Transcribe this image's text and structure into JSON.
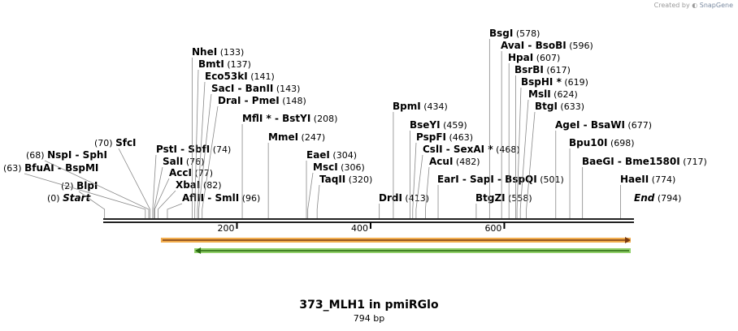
{
  "credit": {
    "prefix": "Created by",
    "brand": "SnapGene"
  },
  "title": "373_MLH1 in pmiRGlo",
  "size_label": "794 bp",
  "sequence_length": 794,
  "ruler_ticks": [
    200,
    400,
    600
  ],
  "colors": {
    "backbone": "#222222",
    "feature_fwd": "#f0a030",
    "feature_fwd_arrow": "#7a3a10",
    "feature_rev": "#7ec850",
    "feature_rev_arrow": "#2a6a10"
  },
  "features": [
    {
      "direction": "forward",
      "start": 113,
      "end": 794
    },
    {
      "direction": "reverse",
      "start": 163,
      "end": 794
    }
  ],
  "sites": [
    {
      "names": [
        "Start"
      ],
      "pos_label": "(0)",
      "site": 0,
      "italic": true
    },
    {
      "names": [
        "BlpI"
      ],
      "pos_label": "(2)",
      "site": 2
    },
    {
      "names": [
        "BfuAI",
        "BspMI"
      ],
      "pos_label": "(63)",
      "site": 63
    },
    {
      "names": [
        "NspI",
        "SphI"
      ],
      "pos_label": "(68)",
      "site": 68
    },
    {
      "names": [
        "SfcI"
      ],
      "pos_label": "(70)",
      "site": 70
    },
    {
      "names": [
        "PstI",
        "SbfI"
      ],
      "pos_label": "(74)",
      "site": 74
    },
    {
      "names": [
        "SalI"
      ],
      "pos_label": "(76)",
      "site": 76
    },
    {
      "names": [
        "AccI"
      ],
      "pos_label": "(77)",
      "site": 77
    },
    {
      "names": [
        "XbaI"
      ],
      "pos_label": "(82)",
      "site": 82
    },
    {
      "names": [
        "AflII",
        "SmlI"
      ],
      "pos_label": "(96)",
      "site": 96
    },
    {
      "names": [
        "NheI"
      ],
      "pos_label": "(133)",
      "site": 133
    },
    {
      "names": [
        "BmtI"
      ],
      "pos_label": "(137)",
      "site": 137
    },
    {
      "names": [
        "Eco53kI"
      ],
      "pos_label": "(141)",
      "site": 141
    },
    {
      "names": [
        "SacI",
        "BanII"
      ],
      "pos_label": "(143)",
      "site": 143
    },
    {
      "names": [
        "DraI",
        "PmeI"
      ],
      "pos_label": "(148)",
      "site": 148
    },
    {
      "names": [
        "MflI *",
        "BstYI"
      ],
      "pos_label": "(208)",
      "site": 208
    },
    {
      "names": [
        "MmeI"
      ],
      "pos_label": "(247)",
      "site": 247
    },
    {
      "names": [
        "EaeI"
      ],
      "pos_label": "(304)",
      "site": 304
    },
    {
      "names": [
        "MscI"
      ],
      "pos_label": "(306)",
      "site": 306
    },
    {
      "names": [
        "TaqII"
      ],
      "pos_label": "(320)",
      "site": 320
    },
    {
      "names": [
        "DrdI"
      ],
      "pos_label": "(413)",
      "site": 413
    },
    {
      "names": [
        "BpmI"
      ],
      "pos_label": "(434)",
      "site": 434
    },
    {
      "names": [
        "BseYI"
      ],
      "pos_label": "(459)",
      "site": 459
    },
    {
      "names": [
        "PspFI"
      ],
      "pos_label": "(463)",
      "site": 463
    },
    {
      "names": [
        "CslI",
        "SexAI *"
      ],
      "pos_label": "(468)",
      "site": 468
    },
    {
      "names": [
        "AcuI"
      ],
      "pos_label": "(482)",
      "site": 482
    },
    {
      "names": [
        "EarI",
        "SapI",
        "BspQI"
      ],
      "pos_label": "(501)",
      "site": 501
    },
    {
      "names": [
        "BtgZI"
      ],
      "pos_label": "(558)",
      "site": 558
    },
    {
      "names": [
        "BsgI"
      ],
      "pos_label": "(578)",
      "site": 578
    },
    {
      "names": [
        "AvaI",
        "BsoBI"
      ],
      "pos_label": "(596)",
      "site": 596
    },
    {
      "names": [
        "HpaI"
      ],
      "pos_label": "(607)",
      "site": 607
    },
    {
      "names": [
        "BsrBI"
      ],
      "pos_label": "(617)",
      "site": 617
    },
    {
      "names": [
        "BspHI *"
      ],
      "pos_label": "(619)",
      "site": 619
    },
    {
      "names": [
        "MslI"
      ],
      "pos_label": "(624)",
      "site": 624
    },
    {
      "names": [
        "BtgI"
      ],
      "pos_label": "(633)",
      "site": 633
    },
    {
      "names": [
        "AgeI",
        "BsaWI"
      ],
      "pos_label": "(677)",
      "site": 677
    },
    {
      "names": [
        "Bpu10I"
      ],
      "pos_label": "(698)",
      "site": 698
    },
    {
      "names": [
        "BaeGI",
        "Bme1580I"
      ],
      "pos_label": "(717)",
      "site": 717
    },
    {
      "names": [
        "HaeII"
      ],
      "pos_label": "(774)",
      "site": 774
    },
    {
      "names": [
        "End"
      ],
      "pos_label": "(794)",
      "site": 794,
      "italic": true
    }
  ]
}
